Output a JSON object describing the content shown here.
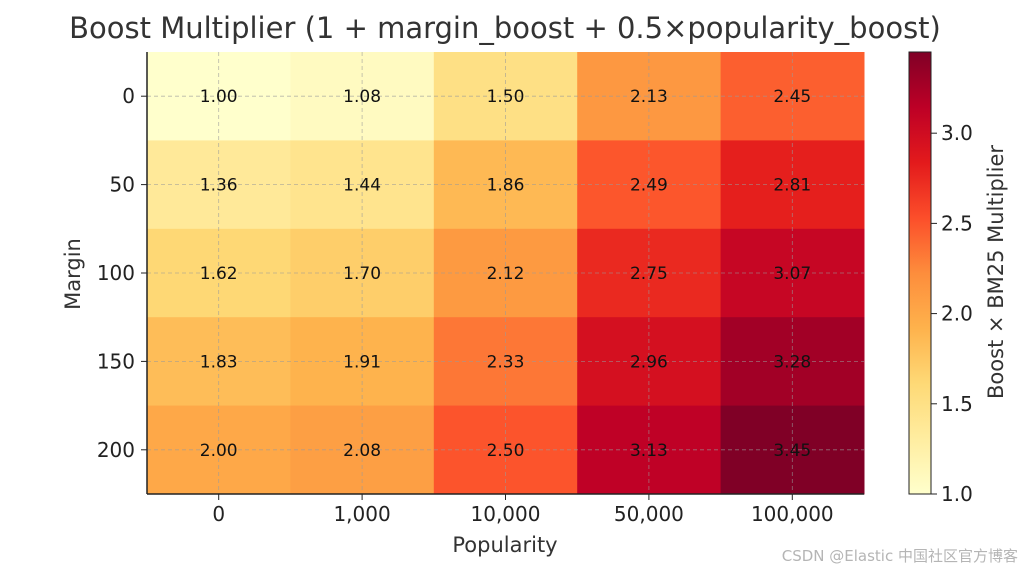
{
  "chart_data": {
    "type": "heatmap",
    "title": "Boost Multiplier (1 + margin_boost + 0.5×popularity_boost)",
    "xlabel": "Popularity",
    "ylabel": "Margin",
    "x_categories": [
      "0",
      "1,000",
      "10,000",
      "50,000",
      "100,000"
    ],
    "y_categories": [
      "0",
      "50",
      "100",
      "150",
      "200"
    ],
    "values": [
      [
        1.0,
        1.08,
        1.5,
        2.13,
        2.45
      ],
      [
        1.36,
        1.44,
        1.86,
        2.49,
        2.81
      ],
      [
        1.62,
        1.7,
        2.12,
        2.75,
        3.07
      ],
      [
        1.83,
        1.91,
        2.33,
        2.96,
        3.28
      ],
      [
        2.0,
        2.08,
        2.5,
        3.13,
        3.45
      ]
    ],
    "colorbar": {
      "label": "Boost × BM25 Multiplier",
      "range": [
        1.0,
        3.45
      ],
      "ticks": [
        1.0,
        1.5,
        2.0,
        2.5,
        3.0
      ],
      "tick_labels": [
        "1.0",
        "1.5",
        "2.0",
        "2.5",
        "3.0"
      ],
      "colormap": "YlOrRd",
      "colormap_stops": [
        "#ffffcc",
        "#ffeda0",
        "#fed976",
        "#feb24c",
        "#fd8d3c",
        "#fc4e2a",
        "#e31a1c",
        "#bd0026",
        "#800026"
      ]
    },
    "grid": true
  },
  "watermark": "CSDN @Elastic 中国社区官方博客"
}
